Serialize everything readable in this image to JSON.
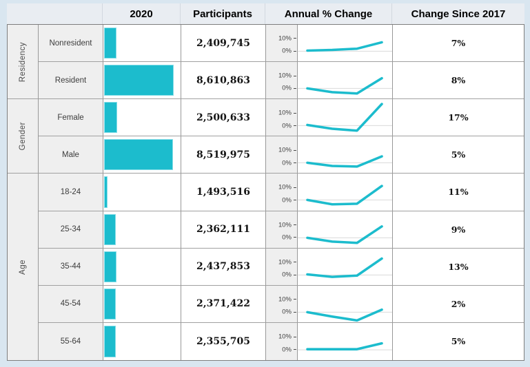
{
  "header": {
    "corner": "",
    "col_2020": "2020",
    "participants": "Participants",
    "annual_change": "Annual % Change",
    "change_since_2017": "Change Since 2017"
  },
  "colors": {
    "accent": "#1cbccd",
    "page_bg": "#d9e6f0",
    "header_bg": "#e9edf2",
    "label_bg": "#efefef",
    "zero_line": "#d9d9d9"
  },
  "chart_data": {
    "type": "table",
    "title": "",
    "columns": [
      "2020",
      "Participants",
      "Annual % Change",
      "Change Since 2017"
    ],
    "bar_axis": {
      "min": 1100000,
      "max": 8610863,
      "max_width_pct": 90
    },
    "spark_axis": {
      "ticks": [
        {
          "label": "10%",
          "value": 10
        },
        {
          "label": "0%",
          "value": 0
        }
      ],
      "y_top": 20.5,
      "y_bottom": -7.9,
      "zero_gridline": true
    },
    "groups": [
      {
        "label": "Residency",
        "rows": [
          {
            "label": "Nonresident",
            "participants": 2409745,
            "participants_text": "2,409,745",
            "spark": [
              0.5,
              1,
              2,
              7
            ],
            "change": "7%"
          },
          {
            "label": "Resident",
            "participants": 8610863,
            "participants_text": "8,610,863",
            "spark": [
              0,
              -3,
              -4,
              8
            ],
            "change": "8%"
          }
        ]
      },
      {
        "label": "Gender",
        "rows": [
          {
            "label": "Female",
            "participants": 2500633,
            "participants_text": "2,500,633",
            "spark": [
              0.5,
              -2.5,
              -4,
              17
            ],
            "change": "17%"
          },
          {
            "label": "Male",
            "participants": 8519975,
            "participants_text": "8,519,975",
            "spark": [
              0,
              -2.5,
              -3,
              5
            ],
            "change": "5%"
          }
        ]
      },
      {
        "label": "Age",
        "rows": [
          {
            "label": "18-24",
            "participants": 1493516,
            "participants_text": "1,493,516",
            "spark": [
              0,
              -3.5,
              -3,
              11
            ],
            "change": "11%"
          },
          {
            "label": "25-34",
            "participants": 2362111,
            "participants_text": "2,362,111",
            "spark": [
              0,
              -3,
              -4,
              9
            ],
            "change": "9%"
          },
          {
            "label": "35-44",
            "participants": 2437853,
            "participants_text": "2,437,853",
            "spark": [
              0.5,
              -1.5,
              -0.5,
              13
            ],
            "change": "13%"
          },
          {
            "label": "45-54",
            "participants": 2371422,
            "participants_text": "2,371,422",
            "spark": [
              0,
              -3.5,
              -6.5,
              2
            ],
            "change": "2%"
          },
          {
            "label": "55-64",
            "participants": 2355705,
            "participants_text": "2,355,705",
            "spark": [
              0.5,
              0.5,
              0.5,
              5
            ],
            "change": "5%"
          }
        ]
      }
    ]
  }
}
